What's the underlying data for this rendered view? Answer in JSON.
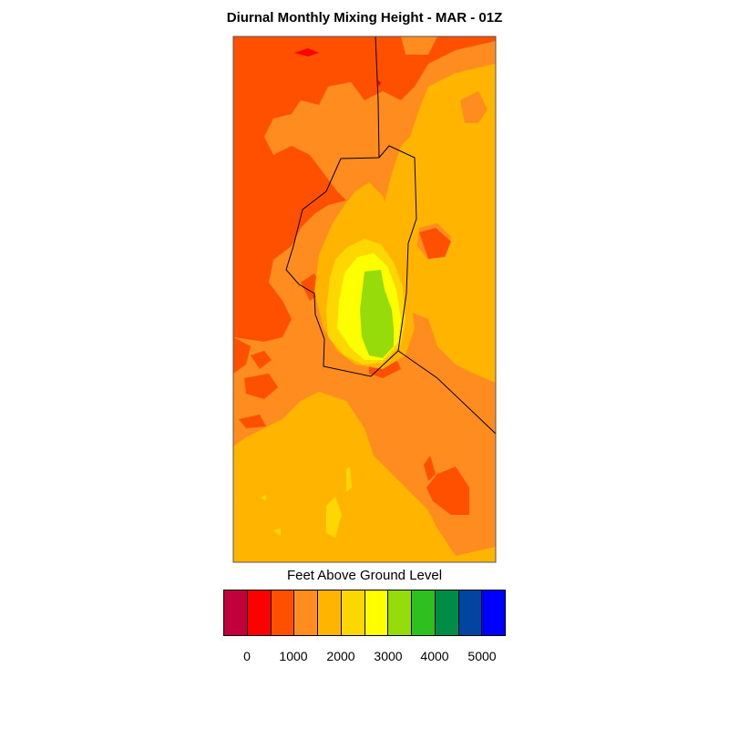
{
  "title": "Diurnal Monthly Mixing Height - MAR - 01Z",
  "legend": {
    "title": "Feet Above Ground Level",
    "colors": [
      "#c0003c",
      "#ff0000",
      "#ff5000",
      "#ff8c1e",
      "#ffb400",
      "#ffd700",
      "#ffff00",
      "#96dc0a",
      "#2ec01e",
      "#008c46",
      "#0046a0",
      "#0000ff"
    ],
    "tick_labels": [
      "0",
      "1000",
      "2000",
      "3000",
      "4000",
      "5000"
    ]
  },
  "map": {
    "dominant_north_color": "#ff5000",
    "dominant_south_color": "#ffb400",
    "max_region_color": "#96dc0a"
  }
}
